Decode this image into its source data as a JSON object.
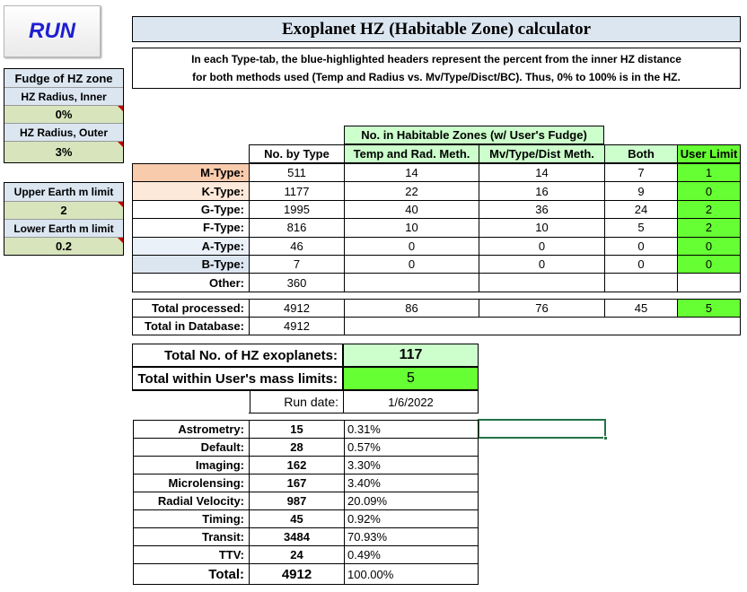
{
  "run_button": {
    "label": "RUN"
  },
  "title": "Exoplanet HZ (Habitable Zone) calculator",
  "description": {
    "line1": "In each Type-tab, the blue-highlighted headers represent the percent from the inner HZ distance",
    "line2": "for both methods used (Temp and Radius vs. Mv/Type/Disct/BC).  Thus, 0% to 100% is in the HZ."
  },
  "fudge": {
    "header": "Fudge of HZ zone",
    "inner_label": "HZ Radius, Inner",
    "inner_value": "0%",
    "outer_label": "HZ Radius, Outer",
    "outer_value": "3%"
  },
  "mass_limits": {
    "upper_label": "Upper Earth m limit",
    "upper_value": "2",
    "lower_label": "Lower Earth m limit",
    "lower_value": "0.2"
  },
  "hz_table": {
    "group_header": "No. in Habitable Zones (w/ User's Fudge)",
    "col_no_by_type": "No. by Type",
    "col_temp_rad": "Temp and Rad. Meth.",
    "col_mv": "Mv/Type/Dist Meth.",
    "col_both": "Both",
    "col_user": "User Limit",
    "rows": [
      {
        "type": "M-Type:",
        "count": "511",
        "temp": "14",
        "mv": "14",
        "both": "7",
        "user": "1"
      },
      {
        "type": "K-Type:",
        "count": "1177",
        "temp": "22",
        "mv": "16",
        "both": "9",
        "user": "0"
      },
      {
        "type": "G-Type:",
        "count": "1995",
        "temp": "40",
        "mv": "36",
        "both": "24",
        "user": "2"
      },
      {
        "type": "F-Type:",
        "count": "816",
        "temp": "10",
        "mv": "10",
        "both": "5",
        "user": "2"
      },
      {
        "type": "A-Type:",
        "count": "46",
        "temp": "0",
        "mv": "0",
        "both": "0",
        "user": "0"
      },
      {
        "type": "B-Type:",
        "count": "7",
        "temp": "0",
        "mv": "0",
        "both": "0",
        "user": "0"
      },
      {
        "type": "Other:",
        "count": "360",
        "temp": "",
        "mv": "",
        "both": "",
        "user": ""
      }
    ],
    "total_processed_label": "Total processed:",
    "total_processed": {
      "count": "4912",
      "temp": "86",
      "mv": "76",
      "both": "45",
      "user": "5"
    },
    "total_db_label": "Total in Database:",
    "total_db": "4912"
  },
  "summary": {
    "total_hz_label": "Total No. of HZ exoplanets:",
    "total_hz_value": "117",
    "within_label": "Total within User's mass limits:",
    "within_value": "5",
    "run_date_label": "Run date:",
    "run_date_value": "1/6/2022"
  },
  "methods": {
    "rows": [
      {
        "name": "Astrometry:",
        "count": "15",
        "pct": "0.31%"
      },
      {
        "name": "Default:",
        "count": "28",
        "pct": "0.57%"
      },
      {
        "name": "Imaging:",
        "count": "162",
        "pct": "3.30%"
      },
      {
        "name": "Microlensing:",
        "count": "167",
        "pct": "3.40%"
      },
      {
        "name": "Radial Velocity:",
        "count": "987",
        "pct": "20.09%"
      },
      {
        "name": "Timing:",
        "count": "45",
        "pct": "0.92%"
      },
      {
        "name": "Transit:",
        "count": "3484",
        "pct": "70.93%"
      },
      {
        "name": "TTV:",
        "count": "24",
        "pct": "0.49%"
      }
    ],
    "total_label": "Total:",
    "total_count": "4912",
    "total_pct": "100.00%"
  }
}
